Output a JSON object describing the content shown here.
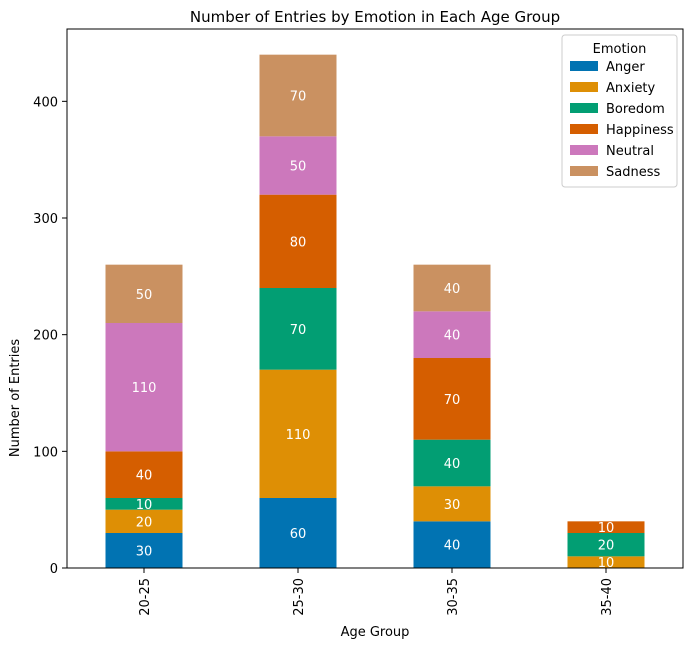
{
  "chart_data": {
    "type": "bar",
    "stacked": true,
    "title": "Number of Entries by Emotion in Each Age Group",
    "xlabel": "Age Group",
    "ylabel": "Number of Entries",
    "categories": [
      "20-25",
      "25-30",
      "30-35",
      "35-40"
    ],
    "ylim": [
      0,
      462
    ],
    "yticks": [
      0,
      100,
      200,
      300,
      400
    ],
    "grid": false,
    "legend": {
      "title": "Emotion",
      "placement": "top-right"
    },
    "series": [
      {
        "name": "Anger",
        "color": "#0173b2",
        "values": [
          30,
          60,
          40,
          0
        ]
      },
      {
        "name": "Anxiety",
        "color": "#de8f05",
        "values": [
          20,
          110,
          30,
          10
        ]
      },
      {
        "name": "Boredom",
        "color": "#029e73",
        "values": [
          10,
          70,
          40,
          20
        ]
      },
      {
        "name": "Happiness",
        "color": "#d55e00",
        "values": [
          40,
          80,
          70,
          10
        ]
      },
      {
        "name": "Neutral",
        "color": "#cc78bc",
        "values": [
          110,
          50,
          40,
          0
        ]
      },
      {
        "name": "Sadness",
        "color": "#ca9161",
        "values": [
          50,
          70,
          40,
          0
        ]
      }
    ]
  }
}
